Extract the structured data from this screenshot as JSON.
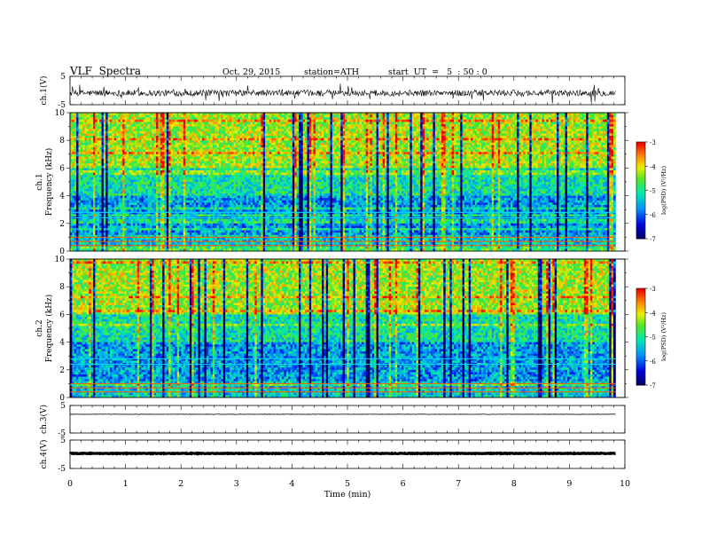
{
  "header": {
    "title": "VLF  Spectra",
    "date": "Oct. 29, 2015",
    "station": "station=ATH",
    "start": "start  UT  =   5  : 50 : 0"
  },
  "chart_data": [
    {
      "type": "line",
      "panel": "ch1-waveform",
      "ylabel": "ch.1(V)",
      "yticks": [
        "5",
        "-5"
      ],
      "ylim": [
        -5,
        5
      ],
      "xlim": [
        0,
        10
      ],
      "x_extent": [
        0,
        9.83
      ],
      "baseline": -0.9,
      "noise_amplitude": 2.2
    },
    {
      "type": "heatmap",
      "panel": "ch1-spectrogram",
      "ylabel": "ch.1\nFrequency  (kHz)",
      "ylabel_lines": [
        "ch.1",
        "Frequency  (kHz)"
      ],
      "yticks": [
        "0",
        "2",
        "4",
        "6",
        "8",
        "10"
      ],
      "ylim": [
        0,
        10
      ],
      "xlim": [
        0,
        10
      ],
      "x_extent": [
        0,
        9.83
      ],
      "colorbar": {
        "label": "log(PSD) (V²/Hz)",
        "ticks": [
          "-3",
          "-4",
          "-5",
          "-6",
          "-7"
        ],
        "range": [
          -7,
          -3
        ]
      }
    },
    {
      "type": "heatmap",
      "panel": "ch2-spectrogram",
      "ylabel": "ch.2\nFrequency  (kHz)",
      "ylabel_lines": [
        "ch.2",
        "Frequency  (kHz)"
      ],
      "yticks": [
        "0",
        "2",
        "4",
        "6",
        "8",
        "10"
      ],
      "ylim": [
        0,
        10
      ],
      "xlim": [
        0,
        10
      ],
      "x_extent": [
        0,
        9.83
      ],
      "colorbar": {
        "label": "log(PSD) (V²/Hz)",
        "ticks": [
          "-3",
          "-4",
          "-5",
          "-6",
          "-7"
        ],
        "range": [
          -7,
          -3
        ]
      }
    },
    {
      "type": "line",
      "panel": "ch3-waveform",
      "ylabel": "ch.3(V)",
      "yticks": [
        "5",
        "-5"
      ],
      "ylim": [
        -5,
        5
      ],
      "xlim": [
        0,
        10
      ],
      "x_extent": [
        0,
        9.83
      ],
      "baseline": 1.8,
      "noise_amplitude": 0.15
    },
    {
      "type": "line",
      "panel": "ch4-waveform",
      "ylabel": "ch.4(V)",
      "yticks": [
        "5",
        "-5"
      ],
      "ylim": [
        -5,
        5
      ],
      "xlim": [
        0,
        10
      ],
      "x_extent": [
        0,
        9.83
      ],
      "baseline": 0.3,
      "noise_amplitude": 0.25,
      "xlabel": "Time  (min)",
      "xticks": [
        "0",
        "1",
        "2",
        "3",
        "4",
        "5",
        "6",
        "7",
        "8",
        "9",
        "10"
      ]
    }
  ]
}
